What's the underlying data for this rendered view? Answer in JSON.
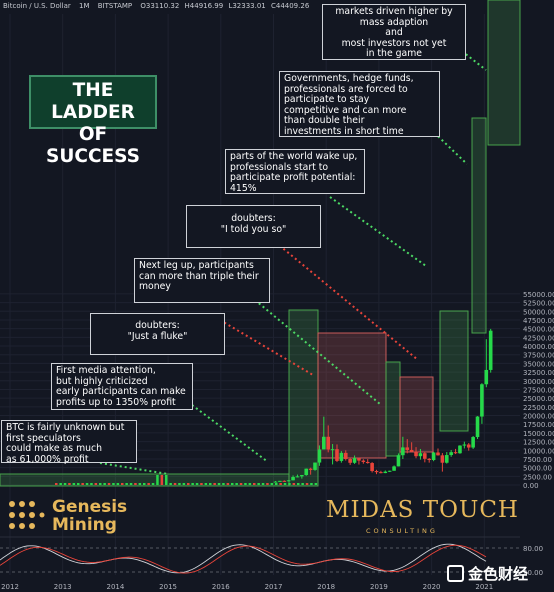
{
  "header": {
    "symbol": "Bitcoin / U.S. Dollar",
    "interval": "1M",
    "exchange": "BITSTAMP",
    "open": "O33110.32",
    "high": "H44916.99",
    "low": "L32333.01",
    "close": "C44409.26"
  },
  "title_box": {
    "line1": "THE LADDER",
    "line2": "OF SUCCESS"
  },
  "annotations": [
    {
      "id": "a1",
      "text": "markets driven higher by\nmass adaption\nand\nmost investors not yet\nin the game"
    },
    {
      "id": "a2",
      "text": "Governments, hedge funds,\nprofessionals are forced to\nparticipate to stay\ncompetitive and can more\nthan double their\ninvestments in short time"
    },
    {
      "id": "a3",
      "text": "parts of the world wake up,\nprofessionals start to\nparticipate profit potential:\n415%"
    },
    {
      "id": "a4",
      "text": "doubters:\n\"I told you so\""
    },
    {
      "id": "a5",
      "text": "Next leg up, participants\ncan more than triple their\nmoney"
    },
    {
      "id": "a6",
      "text": "doubters:\n\"Just a fluke\""
    },
    {
      "id": "a7",
      "text": "First media attention,\nbut highly criticized\nearly participants can make\nprofits up to 1350% profit"
    },
    {
      "id": "a8",
      "text": "BTC is fairly unknown but\nfirst speculators\ncould make as much\nas 61,000% profit"
    }
  ],
  "logos": {
    "genesis": "Genesis\nMining",
    "midas": "MIDAS TOUCH",
    "midas_sub": "CONSULTING",
    "watermark": "金色财经"
  },
  "colors": {
    "background": "#131722",
    "up": "#26d94a",
    "down": "#e8443a",
    "green_zone": "#4caf50",
    "red_zone": "#d9625e",
    "gold": "#e6b85c"
  },
  "chart_data": [
    {
      "type": "candlestick",
      "title": "",
      "x_labels": [
        "2012",
        "2013",
        "2014",
        "2015",
        "2016",
        "2017",
        "2018",
        "2019",
        "2020",
        "2021"
      ],
      "y_ticks": [
        "0.00",
        "2500.00",
        "5000.00",
        "7500.00",
        "10000.00",
        "12500.00",
        "15000.00",
        "17500.00",
        "20000.00",
        "22500.00",
        "25000.00",
        "27500.00",
        "30000.00",
        "32500.00",
        "35000.00",
        "37500.00",
        "40000.00",
        "42500.00",
        "45000.00",
        "47500.00",
        "50000.00",
        "52500.00",
        "55000.00"
      ],
      "ylim": [
        0,
        55000
      ],
      "series": [
        {
          "period": "2017-01",
          "open": 960,
          "high": 1150,
          "low": 750,
          "close": 970
        },
        {
          "period": "2017-02",
          "open": 970,
          "high": 1200,
          "low": 920,
          "close": 1190
        },
        {
          "period": "2017-03",
          "open": 1190,
          "high": 1350,
          "low": 890,
          "close": 1080
        },
        {
          "period": "2017-04",
          "open": 1080,
          "high": 1420,
          "low": 1070,
          "close": 1350
        },
        {
          "period": "2017-05",
          "open": 1350,
          "high": 2760,
          "low": 1340,
          "close": 2300
        },
        {
          "period": "2017-06",
          "open": 2300,
          "high": 3000,
          "low": 2200,
          "close": 2480
        },
        {
          "period": "2017-07",
          "open": 2480,
          "high": 2900,
          "low": 1830,
          "close": 2870
        },
        {
          "period": "2017-08",
          "open": 2870,
          "high": 4760,
          "low": 2670,
          "close": 4700
        },
        {
          "period": "2017-09",
          "open": 4700,
          "high": 4970,
          "low": 2970,
          "close": 4340
        },
        {
          "period": "2017-10",
          "open": 4340,
          "high": 6470,
          "low": 4100,
          "close": 6460
        },
        {
          "period": "2017-11",
          "open": 6460,
          "high": 11390,
          "low": 5520,
          "close": 10230
        },
        {
          "period": "2017-12",
          "open": 10230,
          "high": 19670,
          "low": 10220,
          "close": 13880
        },
        {
          "period": "2018-01",
          "open": 13880,
          "high": 17150,
          "low": 9400,
          "close": 10210
        },
        {
          "period": "2018-02",
          "open": 10210,
          "high": 11790,
          "low": 5920,
          "close": 10310
        },
        {
          "period": "2018-03",
          "open": 10310,
          "high": 11680,
          "low": 6600,
          "close": 6930
        },
        {
          "period": "2018-04",
          "open": 6930,
          "high": 9760,
          "low": 6430,
          "close": 9240
        },
        {
          "period": "2018-05",
          "open": 9240,
          "high": 9990,
          "low": 7040,
          "close": 7480
        },
        {
          "period": "2018-06",
          "open": 7480,
          "high": 7760,
          "low": 5780,
          "close": 6390
        },
        {
          "period": "2018-07",
          "open": 6390,
          "high": 8500,
          "low": 6070,
          "close": 7730
        },
        {
          "period": "2018-08",
          "open": 7730,
          "high": 7760,
          "low": 5880,
          "close": 7020
        },
        {
          "period": "2018-09",
          "open": 7020,
          "high": 7410,
          "low": 6120,
          "close": 6630
        },
        {
          "period": "2018-10",
          "open": 6630,
          "high": 7460,
          "low": 6140,
          "close": 6320
        },
        {
          "period": "2018-11",
          "open": 6320,
          "high": 6590,
          "low": 3600,
          "close": 4020
        },
        {
          "period": "2018-12",
          "open": 4020,
          "high": 4380,
          "low": 3120,
          "close": 3700
        },
        {
          "period": "2019-01",
          "open": 3700,
          "high": 4090,
          "low": 3360,
          "close": 3440
        },
        {
          "period": "2019-02",
          "open": 3440,
          "high": 4190,
          "low": 3400,
          "close": 3840
        },
        {
          "period": "2019-03",
          "open": 3840,
          "high": 4120,
          "low": 3730,
          "close": 4100
        },
        {
          "period": "2019-04",
          "open": 4100,
          "high": 5620,
          "low": 4090,
          "close": 5350
        },
        {
          "period": "2019-05",
          "open": 5350,
          "high": 9080,
          "low": 5340,
          "close": 8570
        },
        {
          "period": "2019-06",
          "open": 8570,
          "high": 13880,
          "low": 7480,
          "close": 10820
        },
        {
          "period": "2019-07",
          "open": 10820,
          "high": 13200,
          "low": 9100,
          "close": 10080
        },
        {
          "period": "2019-08",
          "open": 10080,
          "high": 12300,
          "low": 9410,
          "close": 9600
        },
        {
          "period": "2019-09",
          "open": 9600,
          "high": 10900,
          "low": 7700,
          "close": 8290
        },
        {
          "period": "2019-10",
          "open": 8290,
          "high": 10370,
          "low": 7300,
          "close": 9150
        },
        {
          "period": "2019-11",
          "open": 9150,
          "high": 9520,
          "low": 6520,
          "close": 7540
        },
        {
          "period": "2019-12",
          "open": 7540,
          "high": 7750,
          "low": 6430,
          "close": 7190
        },
        {
          "period": "2020-01",
          "open": 7190,
          "high": 9580,
          "low": 6850,
          "close": 9350
        },
        {
          "period": "2020-02",
          "open": 9350,
          "high": 10500,
          "low": 8450,
          "close": 8540
        },
        {
          "period": "2020-03",
          "open": 8540,
          "high": 9190,
          "low": 3850,
          "close": 6410
        },
        {
          "period": "2020-04",
          "open": 6410,
          "high": 9480,
          "low": 6160,
          "close": 8620
        },
        {
          "period": "2020-05",
          "open": 8620,
          "high": 10080,
          "low": 8110,
          "close": 9450
        },
        {
          "period": "2020-06",
          "open": 9450,
          "high": 10390,
          "low": 8900,
          "close": 9140
        },
        {
          "period": "2020-07",
          "open": 9140,
          "high": 11450,
          "low": 8980,
          "close": 11350
        },
        {
          "period": "2020-08",
          "open": 11350,
          "high": 12470,
          "low": 10520,
          "close": 11650
        },
        {
          "period": "2020-09",
          "open": 11650,
          "high": 12070,
          "low": 9880,
          "close": 10780
        },
        {
          "period": "2020-10",
          "open": 10780,
          "high": 14100,
          "low": 10370,
          "close": 13800
        },
        {
          "period": "2020-11",
          "open": 13800,
          "high": 19840,
          "low": 13240,
          "close": 19700
        },
        {
          "period": "2020-12",
          "open": 19700,
          "high": 29300,
          "low": 17600,
          "close": 28990
        },
        {
          "period": "2021-01",
          "open": 28990,
          "high": 41970,
          "low": 28130,
          "close": 33110
        },
        {
          "period": "2021-02",
          "open": 33110,
          "high": 44916.99,
          "low": 32333.01,
          "close": 44409.26
        }
      ]
    },
    {
      "type": "line",
      "title": "",
      "y_ticks": [
        "80.00",
        "20.00"
      ],
      "ylim": [
        0,
        100
      ]
    }
  ]
}
